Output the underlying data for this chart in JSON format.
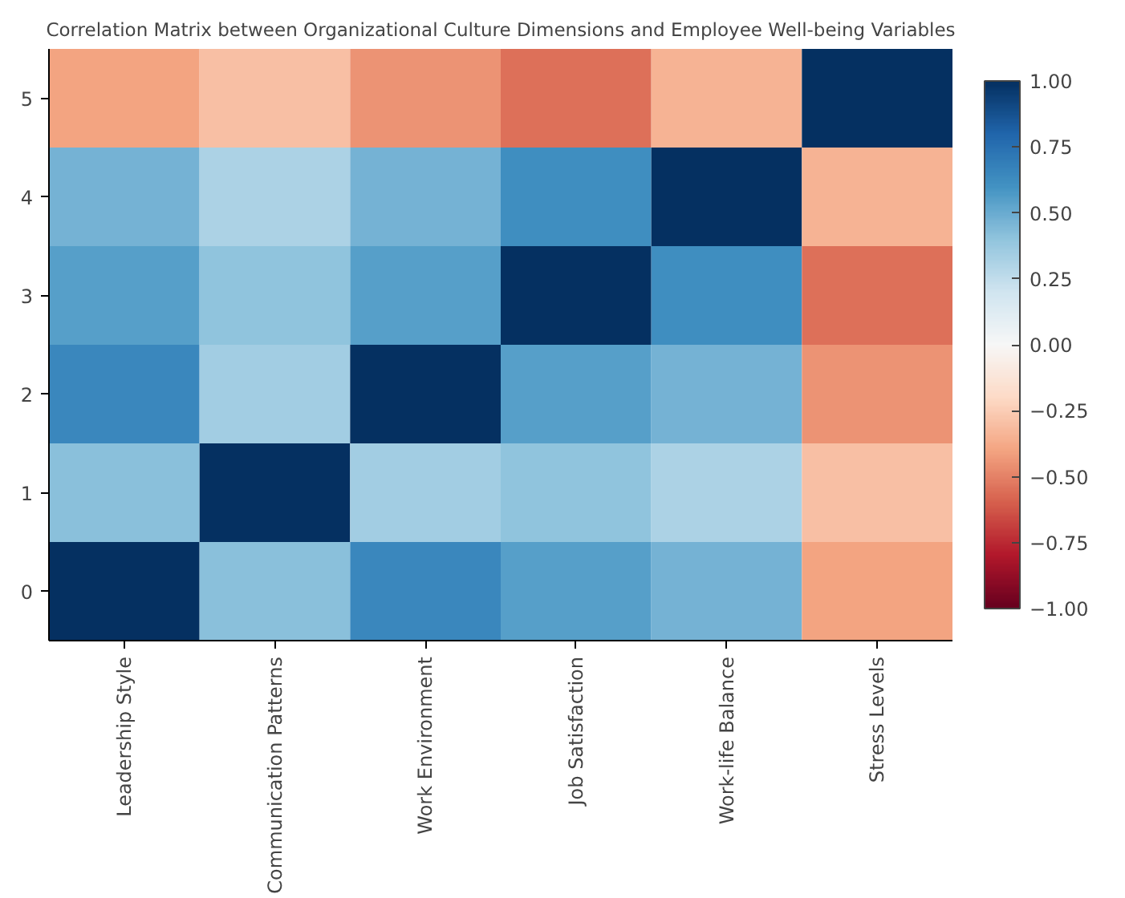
{
  "chart_data": {
    "type": "heatmap",
    "title": "Correlation Matrix between Organizational Culture Dimensions and Employee Well-being Variables",
    "categories": [
      "Leadership Style",
      "Communication Patterns",
      "Work Environment",
      "Job Satisfaction",
      "Work-life Balance",
      "Stress Levels"
    ],
    "y_categories": [
      "5",
      "4",
      "3",
      "2",
      "1",
      "0"
    ],
    "cells": [
      [
        -0.4,
        -0.3,
        -0.45,
        -0.55,
        -0.35,
        1.0
      ],
      [
        0.47,
        0.32,
        0.47,
        0.62,
        1.0,
        -0.35
      ],
      [
        0.55,
        0.4,
        0.55,
        1.0,
        0.62,
        -0.55
      ],
      [
        0.65,
        0.35,
        1.0,
        0.55,
        0.47,
        -0.45
      ],
      [
        0.42,
        1.0,
        0.35,
        0.4,
        0.32,
        -0.3
      ],
      [
        1.0,
        0.42,
        0.65,
        0.55,
        0.47,
        -0.4
      ]
    ],
    "clim": [
      -1,
      1
    ],
    "cticks": [
      {
        "value": -1,
        "label": "−1.00"
      },
      {
        "value": -0.75,
        "label": "−0.75"
      },
      {
        "value": -0.5,
        "label": "−0.50"
      },
      {
        "value": -0.25,
        "label": "−0.25"
      },
      {
        "value": 0,
        "label": "0.00"
      },
      {
        "value": 0.25,
        "label": "0.25"
      },
      {
        "value": 0.5,
        "label": "0.50"
      },
      {
        "value": 0.75,
        "label": "0.75"
      },
      {
        "value": 1,
        "label": "1.00"
      }
    ],
    "grid": false
  }
}
